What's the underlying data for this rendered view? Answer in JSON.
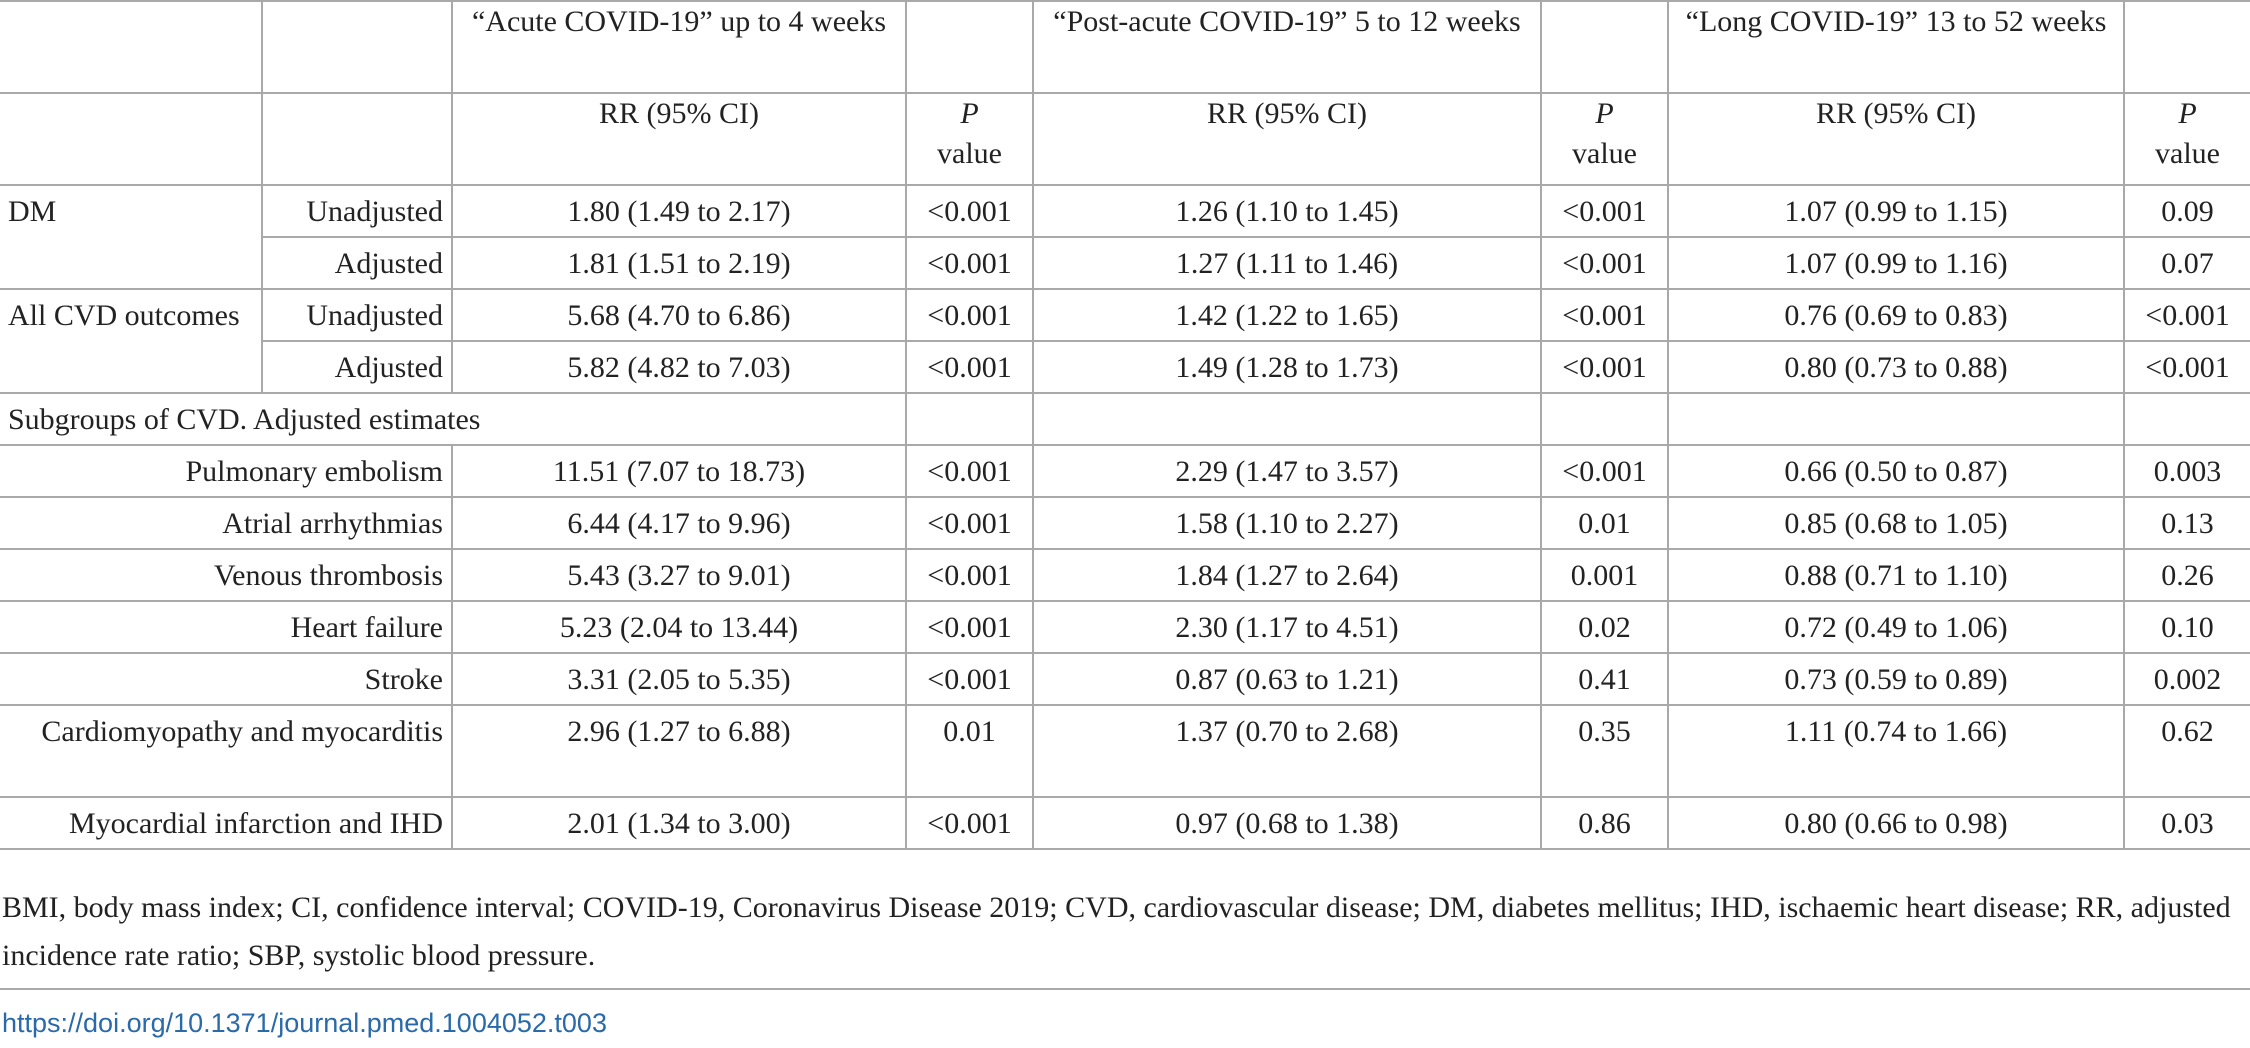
{
  "header": {
    "groups": [
      "“Acute COVID-19” up to 4 weeks",
      "“Post-acute COVID-19” 5 to 12 weeks",
      "“Long COVID-19” 13 to 52 weeks"
    ],
    "rr_label": "RR (95% CI)",
    "p_label_italic": "P",
    "p_label_rest": "value"
  },
  "rows": {
    "dm": {
      "label": "DM",
      "unadj": {
        "label": "Unadjusted",
        "v": [
          "1.80 (1.49 to 2.17)",
          "<0.001",
          "1.26 (1.10 to 1.45)",
          "<0.001",
          "1.07 (0.99 to 1.15)",
          "0.09"
        ]
      },
      "adj": {
        "label": "Adjusted",
        "v": [
          "1.81 (1.51 to 2.19)",
          "<0.001",
          "1.27 (1.11 to 1.46)",
          "<0.001",
          "1.07 (0.99 to 1.16)",
          "0.07"
        ]
      }
    },
    "cvd": {
      "label": "All CVD outcomes",
      "unadj": {
        "label": "Unadjusted",
        "v": [
          "5.68 (4.70 to 6.86)",
          "<0.001",
          "1.42 (1.22 to 1.65)",
          "<0.001",
          "0.76 (0.69 to 0.83)",
          "<0.001"
        ]
      },
      "adj": {
        "label": "Adjusted",
        "v": [
          "5.82 (4.82 to 7.03)",
          "<0.001",
          "1.49 (1.28 to 1.73)",
          "<0.001",
          "0.80 (0.73 to 0.88)",
          "<0.001"
        ]
      }
    },
    "section_label": "Subgroups of CVD. Adjusted estimates",
    "subgroups": [
      {
        "label": "Pulmonary embolism",
        "v": [
          "11.51 (7.07 to 18.73)",
          "<0.001",
          "2.29 (1.47 to 3.57)",
          "<0.001",
          "0.66 (0.50 to 0.87)",
          "0.003"
        ]
      },
      {
        "label": "Atrial arrhythmias",
        "v": [
          "6.44 (4.17 to 9.96)",
          "<0.001",
          "1.58 (1.10 to 2.27)",
          "0.01",
          "0.85 (0.68 to 1.05)",
          "0.13"
        ]
      },
      {
        "label": "Venous thrombosis",
        "v": [
          "5.43 (3.27 to 9.01)",
          "<0.001",
          "1.84 (1.27 to 2.64)",
          "0.001",
          "0.88 (0.71 to 1.10)",
          "0.26"
        ]
      },
      {
        "label": "Heart failure",
        "v": [
          "5.23 (2.04 to 13.44)",
          "<0.001",
          "2.30 (1.17 to 4.51)",
          "0.02",
          "0.72 (0.49 to 1.06)",
          "0.10"
        ]
      },
      {
        "label": "Stroke",
        "v": [
          "3.31 (2.05 to 5.35)",
          "<0.001",
          "0.87 (0.63 to 1.21)",
          "0.41",
          "0.73 (0.59 to 0.89)",
          "0.002"
        ]
      },
      {
        "label": "Cardiomyopathy and myocarditis",
        "v": [
          "2.96 (1.27 to 6.88)",
          "0.01",
          "1.37 (0.70 to 2.68)",
          "0.35",
          "1.11 (0.74 to 1.66)",
          "0.62"
        ]
      },
      {
        "label": "Myocardial infarction and IHD",
        "v": [
          "2.01 (1.34 to 3.00)",
          "<0.001",
          "0.97 (0.68 to 1.38)",
          "0.86",
          "0.80 (0.66 to 0.98)",
          "0.03"
        ]
      }
    ]
  },
  "footnote": "BMI, body mass index; CI, confidence interval; COVID-19, Coronavirus Disease 2019; CVD, cardiovascular disease; DM, diabetes mellitus; IHD, ischaemic heart disease; RR, adjusted incidence rate ratio; SBP, systolic blood pressure.",
  "doi": "https://doi.org/10.1371/journal.pmed.1004052.t003"
}
